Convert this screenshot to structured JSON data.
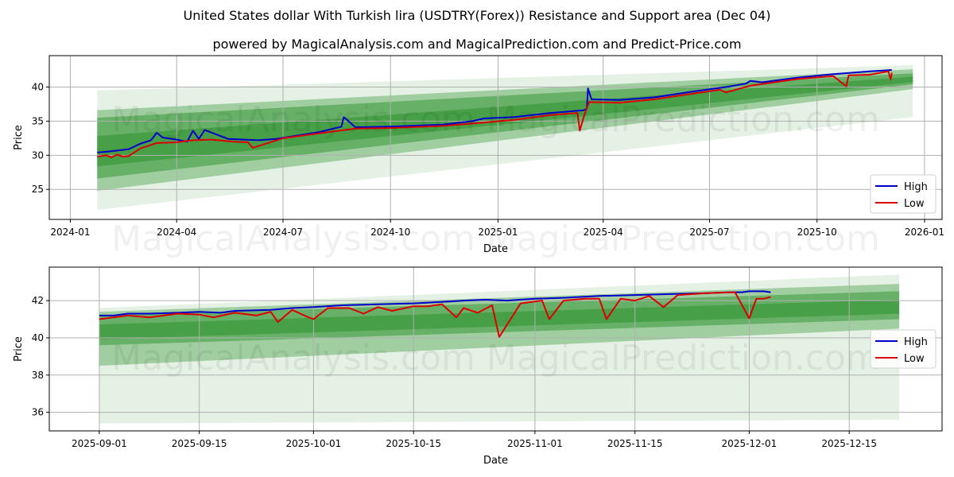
{
  "header": {
    "title": "United States dollar With Turkish lira (USDTRY(Forex)) Resistance and Support area (Dec 04)",
    "subtitle": "powered by MagicalAnalysis.com and MagicalPrediction.com and Predict-Price.com"
  },
  "watermarks": [
    "MagicalAnalysis.com",
    "MagicalPrediction.com"
  ],
  "colors": {
    "high": "#0000cc",
    "low": "#dd0000",
    "band": "#228b22",
    "grid": "#b0b0b0"
  },
  "chart_data": [
    {
      "type": "line",
      "title": "",
      "xlabel": "Date",
      "ylabel": "Price",
      "grid": true,
      "legend_position": "lower right",
      "x_ticks": [
        "2024-01",
        "2024-04",
        "2024-07",
        "2024-10",
        "2025-01",
        "2025-04",
        "2025-07",
        "2025-10",
        "2026-01"
      ],
      "y_ticks": [
        25,
        30,
        35,
        40
      ],
      "ylim": [
        20.6,
        44.6
      ],
      "xlim": [
        "2023-12-14",
        "2026-01-16"
      ],
      "legend": [
        "High",
        "Low"
      ],
      "bands": {
        "x_start": "2024-01-24",
        "x_end": "2025-12-22",
        "outer_upper": [
          39.5,
          43.2
        ],
        "outer_lower": [
          22.0,
          35.6
        ],
        "mid_upper": [
          36.6,
          42.6
        ],
        "mid_lower": [
          24.8,
          39.7
        ],
        "inner_upper": [
          35.5,
          42.0
        ],
        "inner_lower": [
          26.6,
          40.4
        ]
      },
      "series": [
        {
          "name": "High",
          "x": [
            "2024-01-24",
            "2024-02-05",
            "2024-02-20",
            "2024-03-01",
            "2024-03-10",
            "2024-03-15",
            "2024-03-20",
            "2024-04-01",
            "2024-04-10",
            "2024-04-15",
            "2024-04-20",
            "2024-04-25",
            "2024-05-15",
            "2024-06-10",
            "2024-06-25",
            "2024-07-10",
            "2024-08-01",
            "2024-08-20",
            "2024-08-22",
            "2024-09-01",
            "2024-10-01",
            "2024-11-15",
            "2024-12-10",
            "2024-12-20",
            "2025-01-15",
            "2025-02-15",
            "2025-03-15",
            "2025-03-18",
            "2025-03-19",
            "2025-03-22",
            "2025-04-15",
            "2025-05-15",
            "2025-06-15",
            "2025-07-15",
            "2025-08-01",
            "2025-08-05",
            "2025-08-15",
            "2025-09-15",
            "2025-10-15",
            "2025-11-15",
            "2025-12-04"
          ],
          "values": [
            30.4,
            30.6,
            30.9,
            31.7,
            32.2,
            33.3,
            32.6,
            32.3,
            32.0,
            33.6,
            32.4,
            33.7,
            32.4,
            32.2,
            32.4,
            32.8,
            33.4,
            34.2,
            35.6,
            34.1,
            34.2,
            34.5,
            35.0,
            35.4,
            35.6,
            36.2,
            36.6,
            36.8,
            39.8,
            38.2,
            38.1,
            38.5,
            39.3,
            40.0,
            40.5,
            40.9,
            40.7,
            41.4,
            41.9,
            42.3,
            42.5
          ]
        },
        {
          "name": "Low",
          "x": [
            "2024-01-24",
            "2024-02-01",
            "2024-02-05",
            "2024-02-10",
            "2024-02-15",
            "2024-02-20",
            "2024-03-01",
            "2024-03-15",
            "2024-04-01",
            "2024-04-15",
            "2024-05-01",
            "2024-05-20",
            "2024-06-01",
            "2024-06-05",
            "2024-07-01",
            "2024-08-01",
            "2024-09-01",
            "2024-10-01",
            "2024-11-15",
            "2024-12-20",
            "2025-01-15",
            "2025-02-15",
            "2025-03-10",
            "2025-03-12",
            "2025-03-16",
            "2025-03-20",
            "2025-04-15",
            "2025-05-15",
            "2025-06-15",
            "2025-07-10",
            "2025-07-15",
            "2025-08-05",
            "2025-09-15",
            "2025-10-15",
            "2025-10-26",
            "2025-10-28",
            "2025-11-15",
            "2025-12-01",
            "2025-12-03",
            "2025-12-04"
          ],
          "values": [
            29.8,
            30.0,
            29.7,
            30.1,
            29.8,
            29.9,
            31.0,
            31.8,
            31.9,
            32.2,
            32.3,
            32.0,
            31.9,
            31.1,
            32.5,
            33.2,
            33.9,
            34.0,
            34.3,
            34.8,
            35.2,
            35.9,
            36.2,
            33.6,
            36.0,
            37.8,
            37.7,
            38.2,
            39.0,
            39.6,
            39.2,
            40.2,
            41.2,
            41.6,
            40.1,
            41.7,
            41.8,
            42.3,
            41.1,
            42.1
          ]
        }
      ]
    },
    {
      "type": "line",
      "title": "",
      "xlabel": "Date",
      "ylabel": "Price",
      "grid": true,
      "legend_position": "center right",
      "x_ticks": [
        "2025-09-01",
        "2025-09-15",
        "2025-10-01",
        "2025-10-15",
        "2025-11-01",
        "2025-11-15",
        "2025-12-01",
        "2025-12-15"
      ],
      "y_ticks": [
        36,
        38,
        40,
        42
      ],
      "ylim": [
        35.0,
        43.8
      ],
      "xlim": [
        "2025-08-25",
        "2025-12-28"
      ],
      "legend": [
        "High",
        "Low"
      ],
      "bands": {
        "x_start": "2025-09-01",
        "x_end": "2025-12-22",
        "outer_upper": [
          41.6,
          43.4
        ],
        "outer_lower": [
          35.4,
          35.6
        ],
        "mid_upper": [
          41.4,
          42.9
        ],
        "mid_lower": [
          38.5,
          40.5
        ],
        "inner_upper": [
          41.2,
          42.5
        ],
        "inner_lower": [
          39.6,
          41.0
        ]
      },
      "series": [
        {
          "name": "High",
          "x": [
            "2025-09-01",
            "2025-09-03",
            "2025-09-05",
            "2025-09-08",
            "2025-09-12",
            "2025-09-15",
            "2025-09-18",
            "2025-09-20",
            "2025-09-25",
            "2025-09-28",
            "2025-10-01",
            "2025-10-05",
            "2025-10-10",
            "2025-10-15",
            "2025-10-20",
            "2025-10-22",
            "2025-10-25",
            "2025-10-28",
            "2025-11-01",
            "2025-11-05",
            "2025-11-10",
            "2025-11-15",
            "2025-11-20",
            "2025-11-25",
            "2025-11-28",
            "2025-11-30",
            "2025-12-01",
            "2025-12-02",
            "2025-12-03",
            "2025-12-04"
          ],
          "values": [
            41.2,
            41.2,
            41.3,
            41.3,
            41.35,
            41.4,
            41.35,
            41.45,
            41.5,
            41.6,
            41.65,
            41.75,
            41.8,
            41.85,
            41.95,
            42.0,
            42.05,
            42.0,
            42.1,
            42.15,
            42.25,
            42.3,
            42.35,
            42.4,
            42.45,
            42.45,
            42.5,
            42.5,
            42.5,
            42.45
          ]
        },
        {
          "name": "Low",
          "x": [
            "2025-09-01",
            "2025-09-05",
            "2025-09-08",
            "2025-09-12",
            "2025-09-15",
            "2025-09-17",
            "2025-09-20",
            "2025-09-23",
            "2025-09-25",
            "2025-09-26",
            "2025-09-28",
            "2025-09-30",
            "2025-10-01",
            "2025-10-03",
            "2025-10-06",
            "2025-10-08",
            "2025-10-10",
            "2025-10-12",
            "2025-10-15",
            "2025-10-17",
            "2025-10-19",
            "2025-10-21",
            "2025-10-22",
            "2025-10-24",
            "2025-10-26",
            "2025-10-27",
            "2025-10-30",
            "2025-11-02",
            "2025-11-03",
            "2025-11-05",
            "2025-11-08",
            "2025-11-10",
            "2025-11-11",
            "2025-11-13",
            "2025-11-15",
            "2025-11-17",
            "2025-11-19",
            "2025-11-21",
            "2025-11-25",
            "2025-11-29",
            "2025-12-01",
            "2025-12-02",
            "2025-12-03",
            "2025-12-04"
          ],
          "values": [
            41.0,
            41.2,
            41.1,
            41.3,
            41.25,
            41.1,
            41.35,
            41.2,
            41.4,
            40.85,
            41.5,
            41.15,
            41.0,
            41.6,
            41.6,
            41.3,
            41.65,
            41.45,
            41.7,
            41.7,
            41.8,
            41.1,
            41.6,
            41.35,
            41.75,
            40.05,
            41.85,
            42.0,
            41.0,
            42.0,
            42.1,
            42.1,
            41.0,
            42.1,
            42.0,
            42.25,
            41.65,
            42.3,
            42.4,
            42.45,
            41.05,
            42.1,
            42.1,
            42.2
          ]
        }
      ]
    }
  ]
}
